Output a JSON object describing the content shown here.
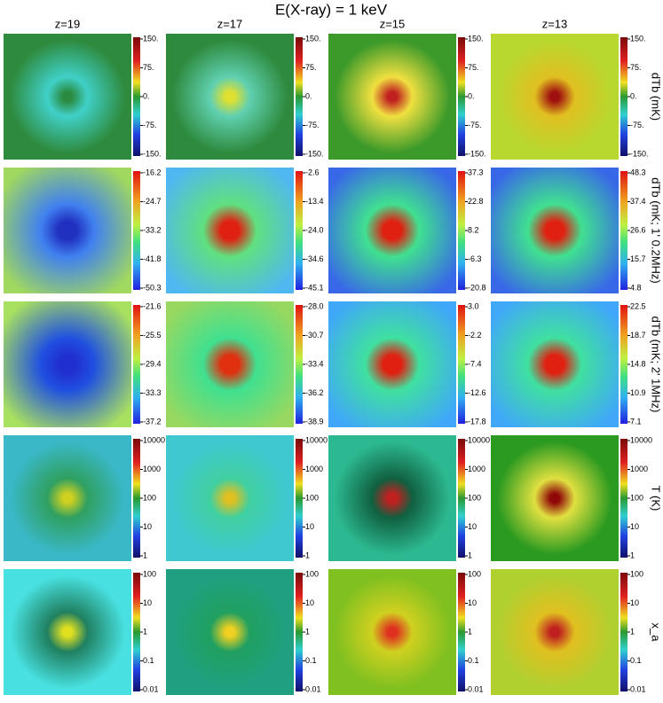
{
  "title": "E(X-ray) = 1 keV",
  "columns": [
    "z=19",
    "z=17",
    "z=15",
    "z=13"
  ],
  "rows": [
    {
      "label": "dTb (mK)",
      "ticks": [
        [
          "150.",
          "75.",
          "0.",
          "-75.",
          "-150."
        ],
        [
          "150.",
          "75.",
          "0.",
          "-75.",
          "-150."
        ],
        [
          "150.",
          "75.",
          "0.",
          "-75.",
          "-150."
        ],
        [
          "150.",
          "75.",
          "0.",
          "-75.",
          "-150."
        ]
      ]
    },
    {
      "label": "dTb (mK; 1' 0.2MHz)",
      "ticks": [
        [
          "-16.2",
          "-24.7",
          "-33.2",
          "-41.8",
          "-50.3"
        ],
        [
          "-2.6",
          "-13.4",
          "-24.0",
          "-34.6",
          "-45.1"
        ],
        [
          "37.3",
          "22.8",
          "8.2",
          "-6.3",
          "-20.8"
        ],
        [
          "48.3",
          "37.4",
          "26.6",
          "15.7",
          "4.8"
        ]
      ]
    },
    {
      "label": "dTb (mK; 2' 1MHz)",
      "ticks": [
        [
          "-21.6",
          "-25.5",
          "-29.4",
          "-33.3",
          "-37.2"
        ],
        [
          "-28.0",
          "-30.7",
          "-33.4",
          "-36.2",
          "-38.9"
        ],
        [
          "3.0",
          "-2.2",
          "-7.4",
          "-12.6",
          "-17.8"
        ],
        [
          "22.5",
          "18.7",
          "14.8",
          "10.9",
          "7.1"
        ]
      ]
    },
    {
      "label": "T (K)",
      "ticks": [
        [
          "10000",
          "1000",
          "100",
          "10",
          "1"
        ],
        [
          "10000",
          "1000",
          "100",
          "10",
          "1"
        ],
        [
          "10000",
          "1000",
          "100",
          "10",
          "1"
        ],
        [
          "10000",
          "1000",
          "100",
          "10",
          "1"
        ]
      ]
    },
    {
      "label": "x_a",
      "ticks": [
        [
          "100",
          "10",
          "1",
          "0.1",
          "0.01"
        ],
        [
          "100",
          "10",
          "1",
          "0.1",
          "0.01"
        ],
        [
          "100",
          "10",
          "1",
          "0.1",
          "0.01"
        ],
        [
          "100",
          "10",
          "1",
          "0.1",
          "0.01"
        ]
      ]
    }
  ]
}
